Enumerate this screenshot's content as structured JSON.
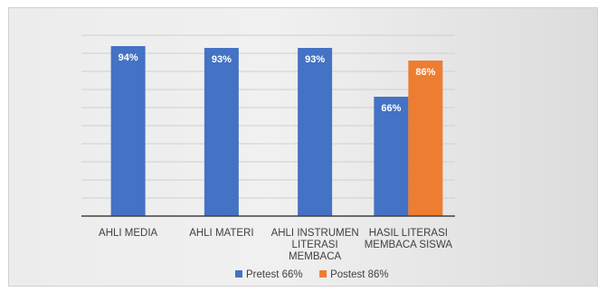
{
  "chart_data": {
    "type": "bar",
    "categories": [
      [
        "AHLI MEDIA"
      ],
      [
        "AHLI MATERI"
      ],
      [
        "AHLI INSTRUMEN",
        "LITERASI",
        "MEMBACA"
      ],
      [
        "HASIL LITERASI",
        "MEMBACA SISWA"
      ]
    ],
    "series": [
      {
        "name": "Pretest 66%",
        "color": "#4472C4",
        "values": [
          94,
          93,
          93,
          66
        ],
        "labels": [
          "94%",
          "93%",
          "93%",
          "66%"
        ]
      },
      {
        "name": "Postest 86%",
        "color": "#ED7D31",
        "values": [
          null,
          null,
          null,
          86
        ],
        "labels": [
          "",
          "",
          "",
          "86%"
        ]
      }
    ],
    "ylim": [
      0,
      100
    ],
    "grid": true,
    "legend_position": "bottom"
  }
}
